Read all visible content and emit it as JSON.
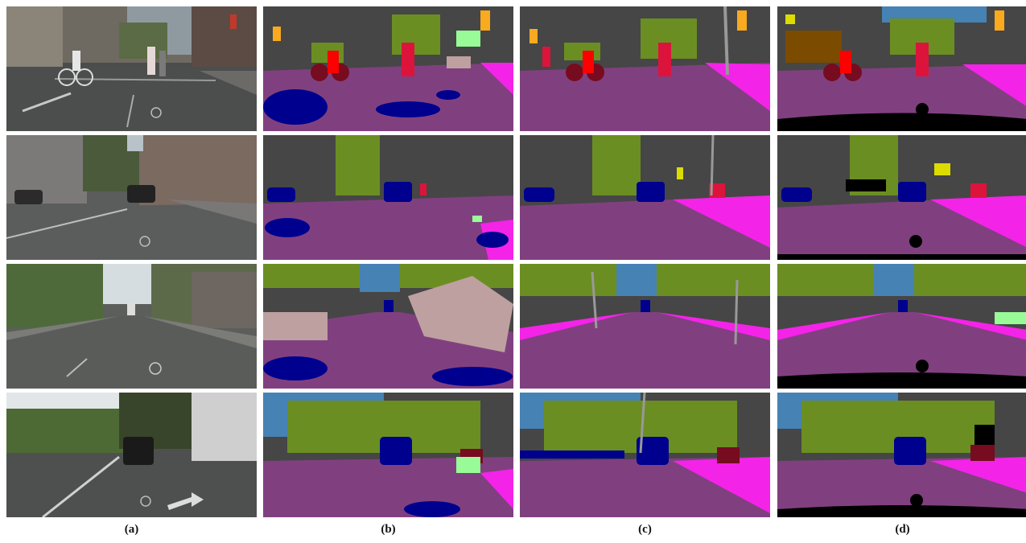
{
  "columns": [
    {
      "id": "a",
      "caption": "(a)",
      "kind": "photo"
    },
    {
      "id": "b",
      "caption": "(b)",
      "kind": "noisy-segmentation"
    },
    {
      "id": "c",
      "caption": "(c)",
      "kind": "refined-segmentation"
    },
    {
      "id": "d",
      "caption": "(d)",
      "kind": "ground-truth"
    }
  ],
  "rows": [
    {
      "id": "row-1",
      "scene": "intersection-cyclist-pedestrian"
    },
    {
      "id": "row-2",
      "scene": "street-parked-cars"
    },
    {
      "id": "row-3",
      "scene": "avenue-bollards-trees"
    },
    {
      "id": "row-4",
      "scene": "road-lead-car-arrow"
    }
  ],
  "palette": {
    "road": "#80407f",
    "sidewalk": "#f423e8",
    "building": "#464646",
    "vegetation": "#6b8e23",
    "sky": "#4682b4",
    "car": "#00008e",
    "person": "#dc143c",
    "rider": "#ff0000",
    "bicycle": "#770b20",
    "pole": "#999999",
    "traffic_sign": "#dcdc00",
    "traffic_light": "#faaa1e",
    "terrain": "#98fb98",
    "wall": "#bea0a0",
    "void": "#000000"
  }
}
